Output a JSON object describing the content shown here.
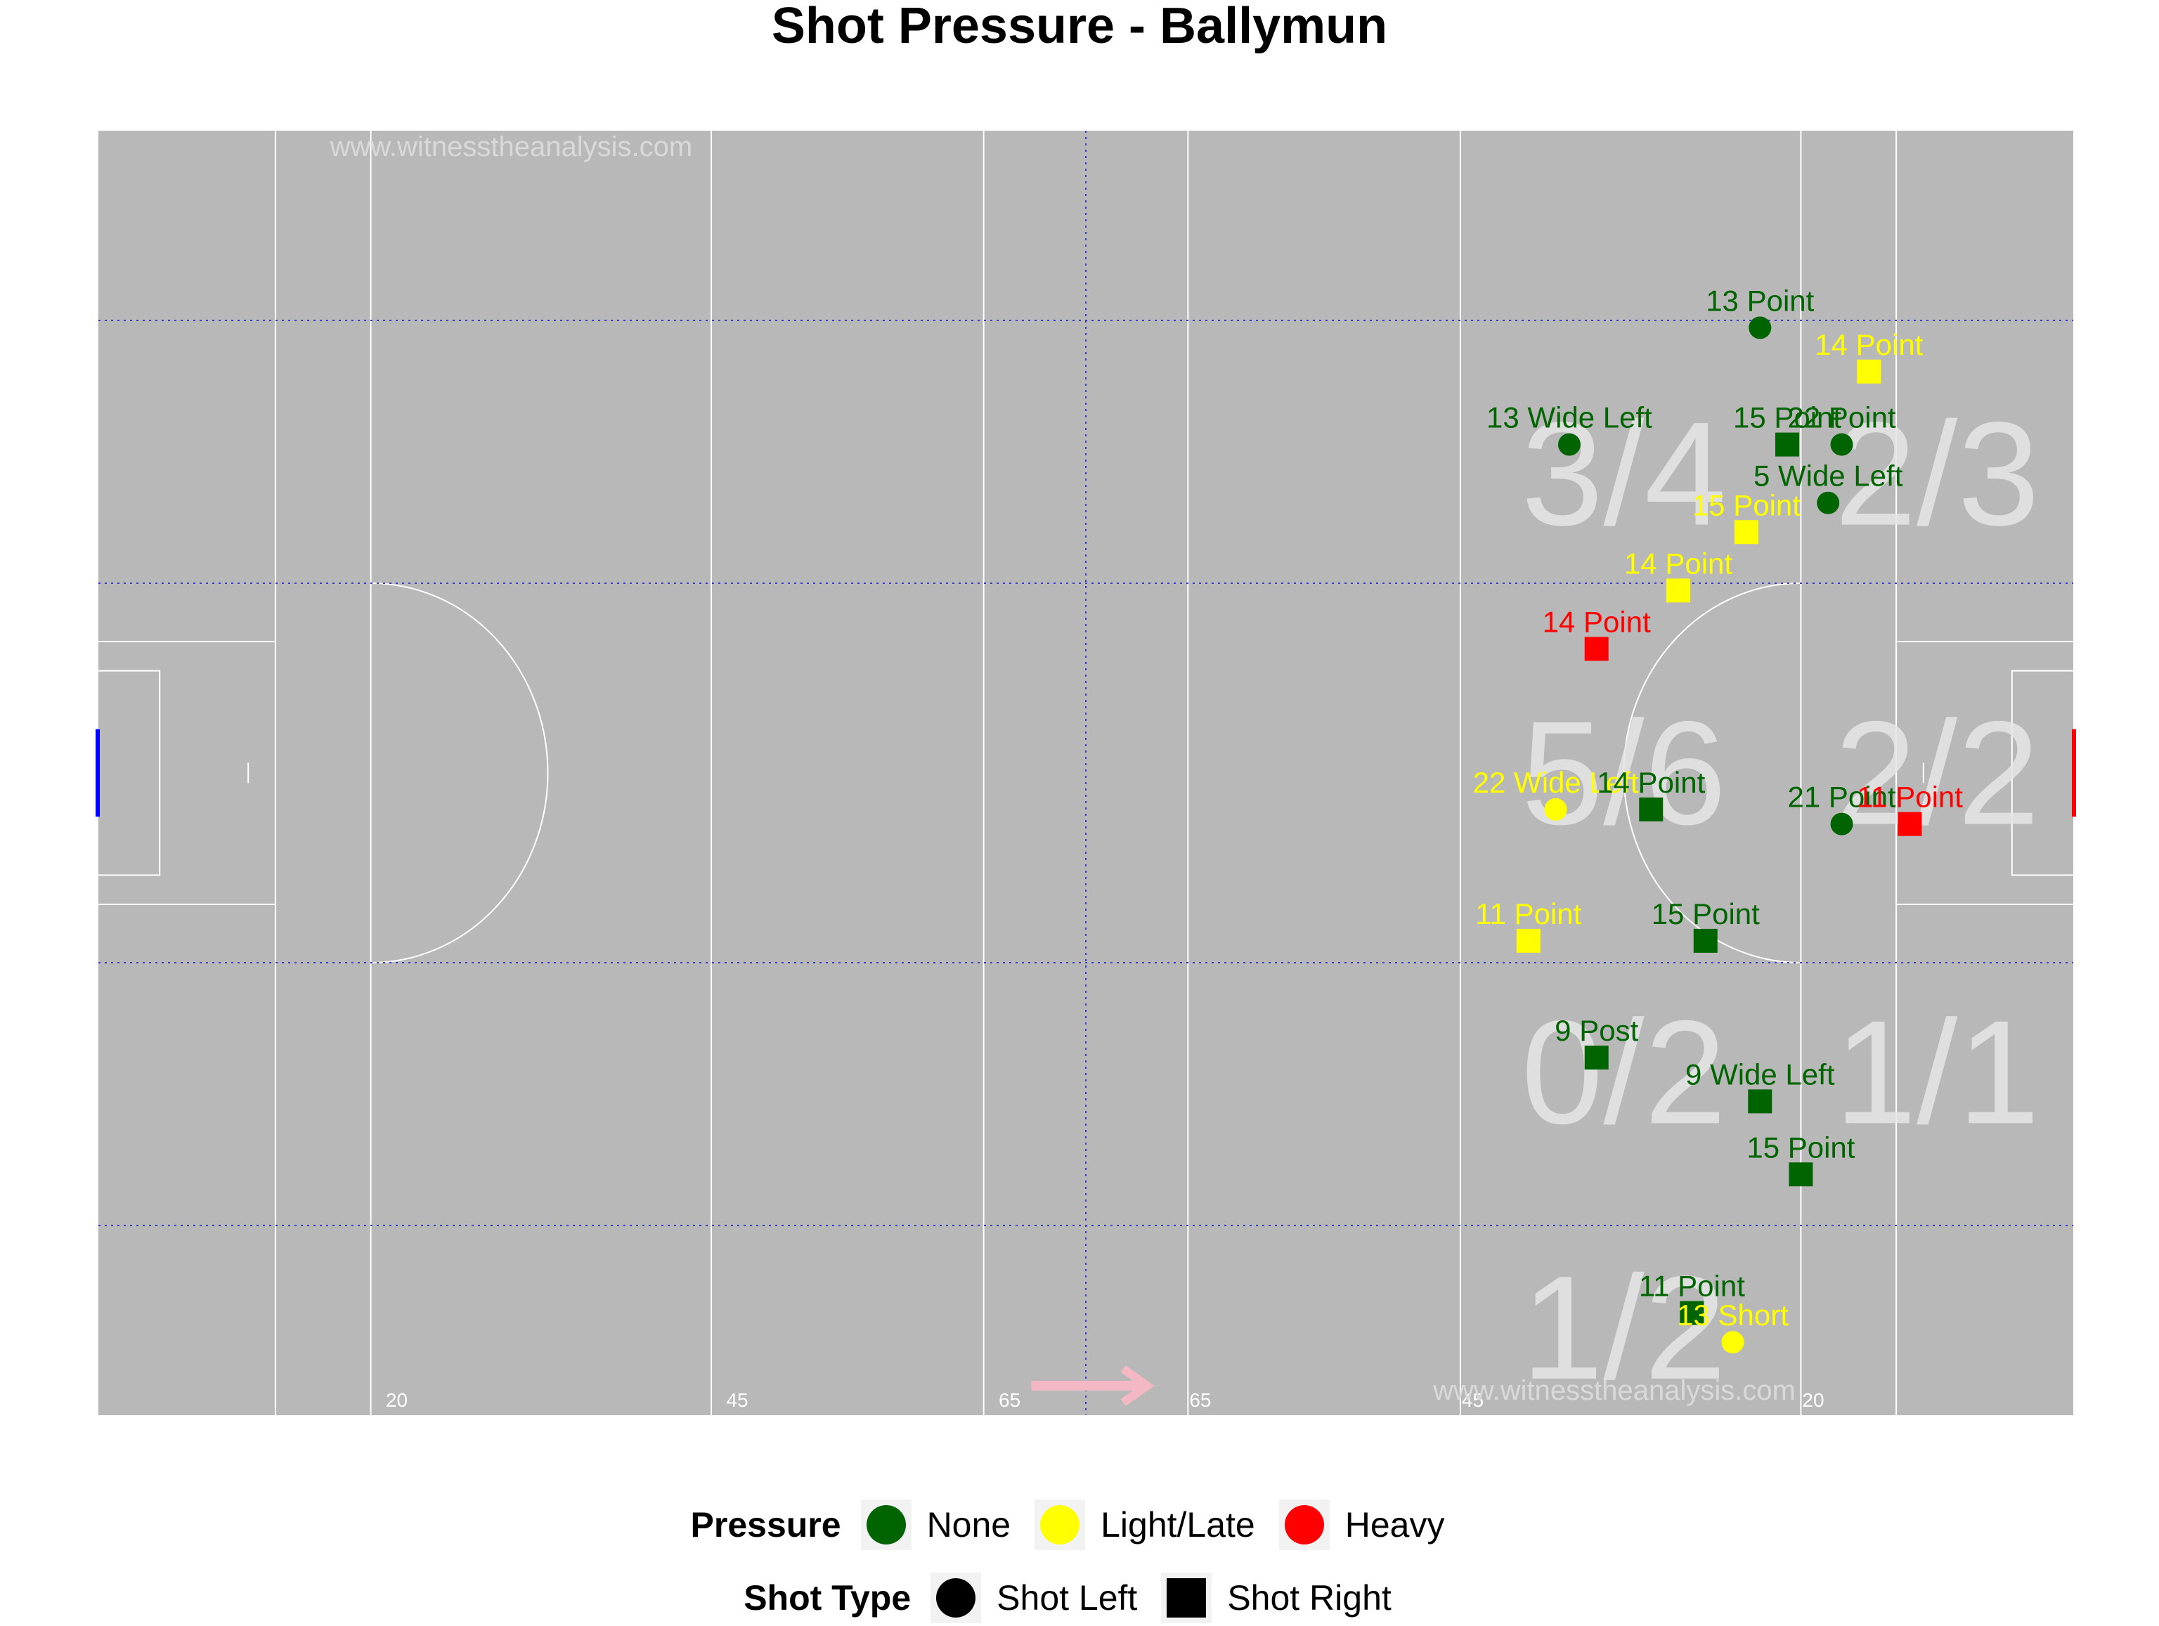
{
  "title": "Shot Pressure - Ballymun",
  "watermark": "www.witnesstheanalysis.com",
  "colors": {
    "pitch": "#b8b8b8",
    "line": "#ffffff",
    "grid": "#3a3acc",
    "none": "#006400",
    "light": "#ffff00",
    "heavy": "#ff0000",
    "zone_text": "#e6e6e6",
    "arrow": "#f4b8c4",
    "goal_left": "#0000ff",
    "goal_right": "#ff0000"
  },
  "chart_data": {
    "type": "scatter",
    "title": "Shot Pressure - Ballymun",
    "xlim": [
      0,
      145
    ],
    "ylim": [
      0,
      88
    ],
    "distance_labels": [
      {
        "x": 21,
        "label": "20"
      },
      {
        "x": 46,
        "label": "45"
      },
      {
        "x": 66,
        "label": "65"
      },
      {
        "x": 80,
        "label": "65"
      },
      {
        "x": 100,
        "label": "45"
      },
      {
        "x": 125,
        "label": "20"
      }
    ],
    "zones": [
      {
        "x": 112,
        "y": 64.5,
        "label": "3/4"
      },
      {
        "x": 135,
        "y": 64.5,
        "label": "2/3"
      },
      {
        "x": 112,
        "y": 44,
        "label": "5/6"
      },
      {
        "x": 135,
        "y": 44,
        "label": "2/2"
      },
      {
        "x": 112,
        "y": 23.5,
        "label": "0/2"
      },
      {
        "x": 135,
        "y": 23.5,
        "label": "1/1"
      },
      {
        "x": 112,
        "y": 6,
        "label": "1/2"
      }
    ],
    "legend": {
      "pressure": {
        "title": "Pressure",
        "items": [
          {
            "label": "None",
            "color": "#006400"
          },
          {
            "label": "Light/Late",
            "color": "#ffff00"
          },
          {
            "label": "Heavy",
            "color": "#ff0000"
          }
        ]
      },
      "shot_type": {
        "title": "Shot Type",
        "items": [
          {
            "label": "Shot Left",
            "shape": "circle"
          },
          {
            "label": "Shot Right",
            "shape": "square"
          }
        ]
      }
    },
    "points": [
      {
        "x": 122,
        "y": 74.5,
        "label": "13 Point",
        "pressure": "None",
        "shot": "Shot Left"
      },
      {
        "x": 130,
        "y": 71.5,
        "label": "14 Point",
        "pressure": "Light/Late",
        "shot": "Shot Right"
      },
      {
        "x": 108,
        "y": 66.5,
        "label": "13 Wide Left",
        "pressure": "None",
        "shot": "Shot Left"
      },
      {
        "x": 124,
        "y": 66.5,
        "label": "15 Point",
        "pressure": "None",
        "shot": "Shot Right"
      },
      {
        "x": 128,
        "y": 66.5,
        "label": "22 Point",
        "pressure": "None",
        "shot": "Shot Left"
      },
      {
        "x": 127,
        "y": 62.5,
        "label": "5 Wide Left",
        "pressure": "None",
        "shot": "Shot Left"
      },
      {
        "x": 121,
        "y": 60.5,
        "label": "15 Point",
        "pressure": "Light/Late",
        "shot": "Shot Right"
      },
      {
        "x": 116,
        "y": 56.5,
        "label": "14 Point",
        "pressure": "Light/Late",
        "shot": "Shot Right"
      },
      {
        "x": 110,
        "y": 52.5,
        "label": "14 Point",
        "pressure": "Heavy",
        "shot": "Shot Right"
      },
      {
        "x": 107,
        "y": 41.5,
        "label": "22 Wide Left",
        "pressure": "Light/Late",
        "shot": "Shot Left"
      },
      {
        "x": 114,
        "y": 41.5,
        "label": "14 Point",
        "pressure": "None",
        "shot": "Shot Right"
      },
      {
        "x": 128,
        "y": 40.5,
        "label": "21 Point",
        "pressure": "None",
        "shot": "Shot Left"
      },
      {
        "x": 133,
        "y": 40.5,
        "label": "11 Point",
        "pressure": "Heavy",
        "shot": "Shot Right"
      },
      {
        "x": 105,
        "y": 32.5,
        "label": "11 Point",
        "pressure": "Light/Late",
        "shot": "Shot Right"
      },
      {
        "x": 118,
        "y": 32.5,
        "label": "15 Point",
        "pressure": "None",
        "shot": "Shot Right"
      },
      {
        "x": 110,
        "y": 24.5,
        "label": "9 Post",
        "pressure": "None",
        "shot": "Shot Right"
      },
      {
        "x": 122,
        "y": 21.5,
        "label": "9 Wide Left",
        "pressure": "None",
        "shot": "Shot Right"
      },
      {
        "x": 125,
        "y": 16.5,
        "label": "15 Point",
        "pressure": "None",
        "shot": "Shot Right"
      },
      {
        "x": 117,
        "y": 7,
        "label": "11 Point",
        "pressure": "None",
        "shot": "Shot Right"
      },
      {
        "x": 120,
        "y": 5,
        "label": "13 Short",
        "pressure": "Light/Late",
        "shot": "Shot Left"
      }
    ]
  }
}
